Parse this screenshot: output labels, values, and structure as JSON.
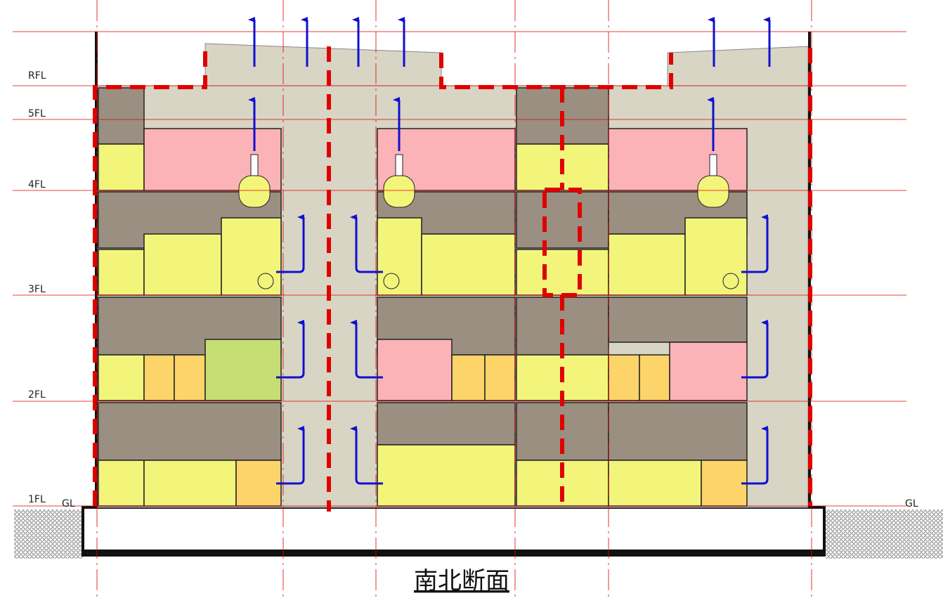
{
  "floor_labels": [
    "RFL",
    "5FL",
    "4FL",
    "3FL",
    "2FL",
    "1FL"
  ],
  "ground_labels": [
    "GL",
    "GL"
  ],
  "title": "南北断面"
}
